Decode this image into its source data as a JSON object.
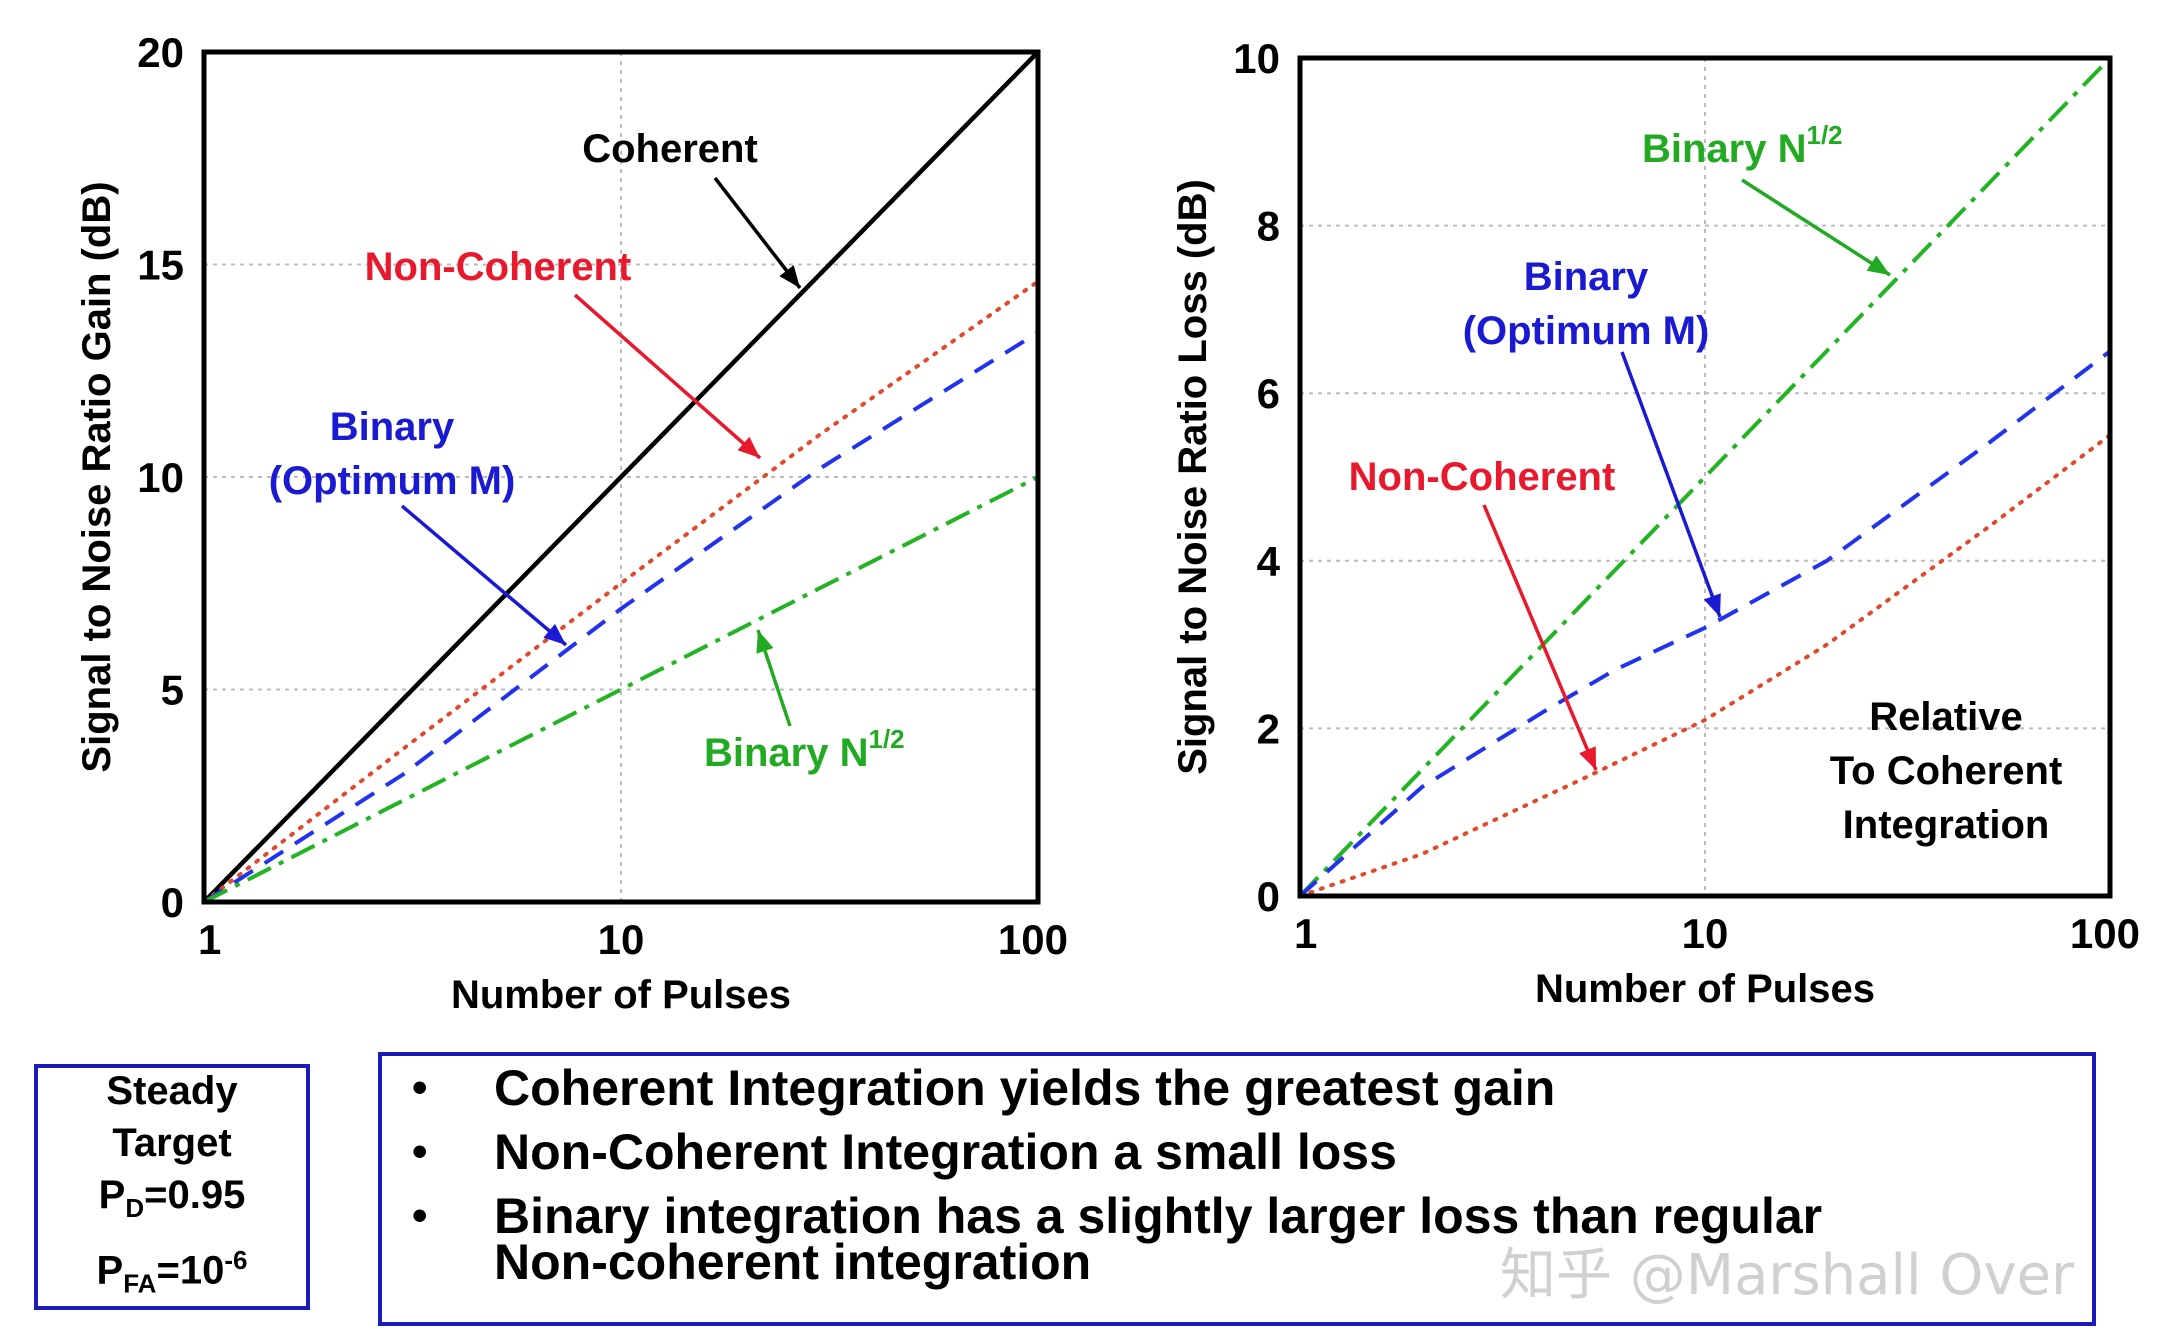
{
  "chart_data": [
    {
      "type": "line",
      "xscale": "log",
      "xlabel": "Number of Pulses",
      "ylabel": "Signal to Noise Ratio Gain (dB)",
      "xlim": [
        1,
        100
      ],
      "ylim": [
        0,
        20
      ],
      "xticks": [
        "1",
        "10",
        "100"
      ],
      "yticks": [
        "0",
        "5",
        "10",
        "15",
        "20"
      ],
      "grid": true,
      "series": [
        {
          "name": "Coherent",
          "color": "#000000",
          "style": "solid",
          "x": [
            1,
            10,
            100
          ],
          "y": [
            0,
            10,
            20
          ]
        },
        {
          "name": "Non-Coherent",
          "color": "#e04a2a",
          "style": "dotted",
          "x": [
            1,
            3,
            10,
            30,
            100
          ],
          "y": [
            0,
            3.6,
            7.5,
            11.0,
            14.6
          ]
        },
        {
          "name": "Binary (Optimum M)",
          "color": "#2233ee",
          "style": "dashed",
          "x": [
            1,
            3,
            10,
            30,
            100
          ],
          "y": [
            0,
            3.0,
            6.9,
            10.2,
            13.4
          ]
        },
        {
          "name": "Binary N1/2",
          "color": "#22b422",
          "style": "dashdot",
          "x": [
            1,
            10,
            100
          ],
          "y": [
            0,
            5,
            10
          ]
        }
      ],
      "annotations": [
        {
          "text": "Coherent",
          "color": "#000000"
        },
        {
          "text": "Non-Coherent",
          "color": "#e8192c"
        },
        {
          "text": "Binary",
          "color": "#1a1ad2"
        },
        {
          "text": "(Optimum M)",
          "color": "#1a1ad2"
        },
        {
          "text": "Binary N",
          "sup": "1/2",
          "color": "#22aa22"
        }
      ]
    },
    {
      "type": "line",
      "xscale": "log",
      "xlabel": "Number of Pulses",
      "ylabel": "Signal to Noise Ratio Loss (dB)",
      "xlim": [
        1,
        100
      ],
      "ylim": [
        0,
        10
      ],
      "xticks": [
        "1",
        "10",
        "100"
      ],
      "yticks": [
        "0",
        "2",
        "4",
        "6",
        "8",
        "10"
      ],
      "grid": true,
      "series": [
        {
          "name": "Binary N1/2",
          "color": "#22b422",
          "style": "dashdot",
          "x": [
            1,
            10,
            100
          ],
          "y": [
            0,
            5,
            10
          ]
        },
        {
          "name": "Binary (Optimum M)",
          "color": "#2233ee",
          "style": "dashed",
          "x": [
            1,
            2,
            4,
            6,
            10,
            20,
            50,
            100
          ],
          "y": [
            0,
            1.3,
            2.2,
            2.7,
            3.2,
            4.0,
            5.4,
            6.5
          ]
        },
        {
          "name": "Non-Coherent",
          "color": "#e04a2a",
          "style": "dotted",
          "x": [
            1,
            2,
            3,
            5,
            10,
            20,
            50,
            100
          ],
          "y": [
            0,
            0.5,
            0.9,
            1.4,
            2.1,
            3.0,
            4.4,
            5.5
          ]
        }
      ],
      "annotations": [
        {
          "text": "Binary N",
          "sup": "1/2",
          "color": "#22aa22"
        },
        {
          "text": "Binary",
          "color": "#1a1ad2"
        },
        {
          "text": "(Optimum M)",
          "color": "#1a1ad2"
        },
        {
          "text": "Non-Coherent",
          "color": "#e8192c"
        },
        {
          "text": "Relative",
          "color": "#000000"
        },
        {
          "text": "To Coherent",
          "color": "#000000"
        },
        {
          "text": "Integration",
          "color": "#000000"
        }
      ]
    }
  ],
  "conditions": {
    "line1": "Steady",
    "line2": "Target",
    "pd_main": "P",
    "pd_sub": "D",
    "pd_rest": "=0.95",
    "pfa_main": "P",
    "pfa_sub": "FA",
    "pfa_mid": "=10",
    "pfa_sup": "-6"
  },
  "bullets": [
    {
      "symbol": "•",
      "text": "Coherent Integration yields the greatest gain"
    },
    {
      "symbol": "•",
      "text": "Non-Coherent Integration a small loss"
    },
    {
      "symbol": "•",
      "text": "Binary integration has a slightly larger loss than regular"
    },
    {
      "symbol": "",
      "text": "Non-coherent integration"
    }
  ],
  "watermark": "知乎 @Marshall Over"
}
